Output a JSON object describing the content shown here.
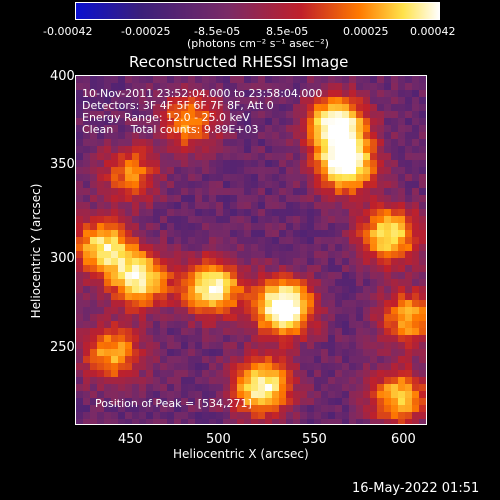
{
  "colorbar": {
    "ticks": [
      "-0.00042",
      "-0.00025",
      "-8.5e-05",
      "8.5e-05",
      "0.00025",
      "0.00042"
    ],
    "units_label": "(photons cm⁻² s⁻¹ asec⁻²)",
    "colors": [
      "#0a10d0",
      "#3b1f7a",
      "#7a2a66",
      "#c0202a",
      "#ff7a00",
      "#ffe24a",
      "#ffffff"
    ]
  },
  "plot": {
    "title": "Reconstructed RHESSI Image",
    "xlabel": "Heliocentric X (arcsec)",
    "ylabel": "Heliocentric Y (arcsec)",
    "info_lines": [
      "10-Nov-2011 23:52:04.000 to 23:58:04.000",
      "Detectors: 3F 4F 5F 6F 7F 8F, Att 0",
      "Energy Range: 12.0 - 25.0 keV",
      "Clean     Total counts: 9.89E+03"
    ],
    "peak_text": "Position of Peak = [534,271]"
  },
  "footer": {
    "timestamp": "16-May-2022 01:51"
  },
  "chart_data": {
    "type": "heatmap",
    "title": "Reconstructed RHESSI Image",
    "xlabel": "Heliocentric X (arcsec)",
    "ylabel": "Heliocentric Y (arcsec)",
    "xlim": [
      420,
      612
    ],
    "ylim": [
      205,
      402
    ],
    "xticks": [
      450,
      500,
      550,
      600
    ],
    "yticks": [
      250,
      300,
      350,
      400
    ],
    "colorbar_range": [
      -0.00042,
      0.00042
    ],
    "peak": [
      534,
      271
    ],
    "bright_regions": [
      {
        "x": 534,
        "y": 271,
        "level": 1.0
      },
      {
        "x": 495,
        "y": 282,
        "level": 0.8
      },
      {
        "x": 455,
        "y": 287,
        "level": 0.75
      },
      {
        "x": 435,
        "y": 305,
        "level": 0.7
      },
      {
        "x": 568,
        "y": 352,
        "level": 0.9
      },
      {
        "x": 563,
        "y": 375,
        "level": 0.85
      },
      {
        "x": 522,
        "y": 226,
        "level": 0.8
      },
      {
        "x": 592,
        "y": 312,
        "level": 0.7
      },
      {
        "x": 603,
        "y": 265,
        "level": 0.55
      },
      {
        "x": 440,
        "y": 245,
        "level": 0.55
      },
      {
        "x": 482,
        "y": 376,
        "level": 0.5
      },
      {
        "x": 450,
        "y": 347,
        "level": 0.45
      },
      {
        "x": 597,
        "y": 220,
        "level": 0.6
      }
    ]
  }
}
